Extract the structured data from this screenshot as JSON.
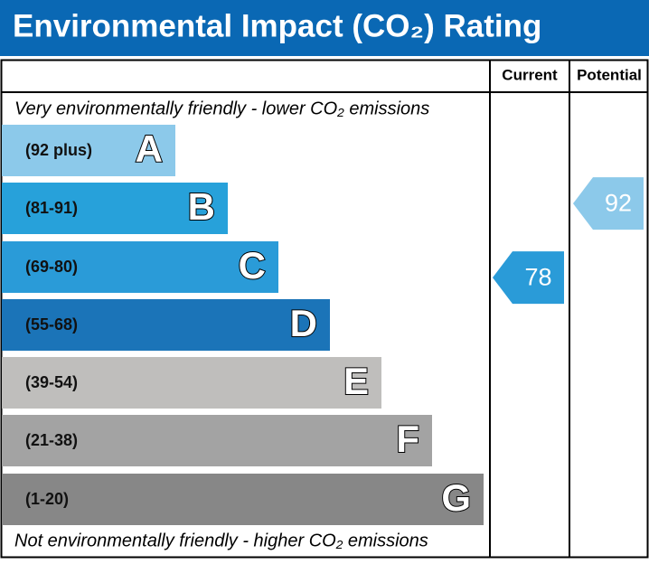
{
  "chart_data": {
    "type": "rating",
    "title": "Environmental Impact (CO₂) Rating",
    "columns": [
      "Current",
      "Potential"
    ],
    "top_note": "Very environmentally friendly - lower CO₂ emissions",
    "bottom_note": "Not environmentally friendly - higher CO₂ emissions",
    "bands": [
      {
        "range": "(92 plus)",
        "letter": "A",
        "color": "#8cc9ea"
      },
      {
        "range": "(81-91)",
        "letter": "B",
        "color": "#27a1da"
      },
      {
        "range": "(69-80)",
        "letter": "C",
        "color": "#2a9bd8"
      },
      {
        "range": "(55-68)",
        "letter": "D",
        "color": "#1b74b8"
      },
      {
        "range": "(39-54)",
        "letter": "E",
        "color": "#bfbebc"
      },
      {
        "range": "(21-38)",
        "letter": "F",
        "color": "#a3a3a3"
      },
      {
        "range": "(1-20)",
        "letter": "G",
        "color": "#878787"
      }
    ],
    "current": {
      "value": 78,
      "color": "#2a9bd8"
    },
    "potential": {
      "value": 92,
      "color": "#8cc9ea"
    }
  }
}
